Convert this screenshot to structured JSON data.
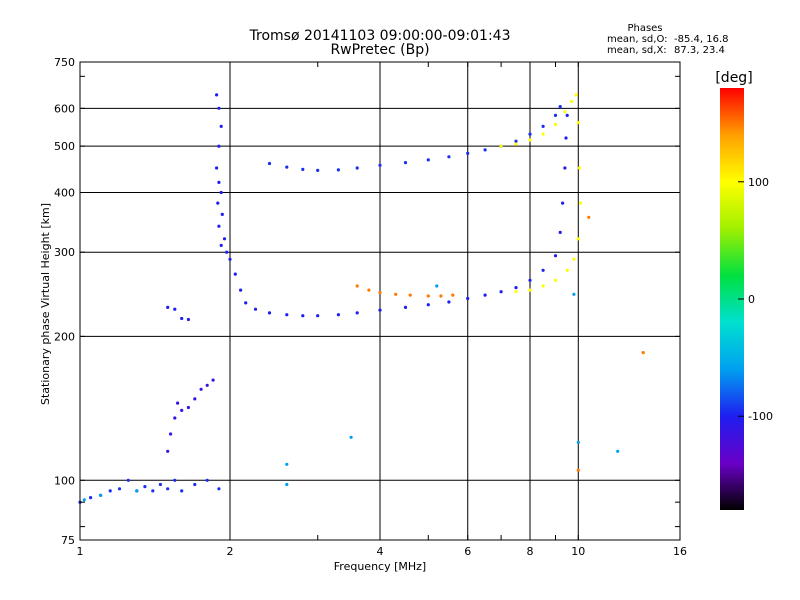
{
  "chart_data": {
    "type": "scatter",
    "title": "Tromsø 20141103 09:00:00-09:01:43",
    "subtitle": "RwPretec (Bp)",
    "xlabel": "Frequency [MHz]",
    "ylabel": "Stationary phase Virtual Height [km]",
    "x_scale": "log",
    "y_scale": "log",
    "xlim": [
      1,
      16
    ],
    "ylim": [
      75,
      750
    ],
    "x_ticks": [
      1,
      2,
      4,
      6,
      8,
      10,
      16
    ],
    "y_ticks": [
      75,
      100,
      200,
      300,
      400,
      500,
      600,
      750
    ],
    "grid": true,
    "phase_stats": {
      "title": "Phases",
      "o_label": "mean, sd,O:",
      "o_values": "-85.4, 16.8",
      "x_label": "mean, sd,X:",
      "x_values": "87.3, 23.4"
    },
    "colorbar": {
      "label": "[deg]",
      "range": [
        -180,
        180
      ],
      "ticks": [
        100,
        0,
        -100
      ],
      "colormap": [
        "#000000",
        "#6a00c8",
        "#1e1ef0",
        "#00a0f0",
        "#00e0d0",
        "#00e040",
        "#a0f000",
        "#ffff00",
        "#ffa000",
        "#ff0000"
      ]
    },
    "series": [
      {
        "color_phase": -95,
        "points": [
          [
            1.0,
            90
          ],
          [
            1.05,
            92
          ],
          [
            1.1,
            93
          ],
          [
            1.15,
            95
          ],
          [
            1.2,
            96
          ],
          [
            1.25,
            100
          ],
          [
            1.3,
            95
          ],
          [
            1.35,
            97
          ],
          [
            1.4,
            95
          ],
          [
            1.45,
            98
          ],
          [
            1.5,
            96
          ],
          [
            1.55,
            100
          ],
          [
            1.6,
            95
          ],
          [
            1.7,
            98
          ],
          [
            1.8,
            100
          ],
          [
            1.9,
            96
          ]
        ]
      },
      {
        "color_phase": -100,
        "points": [
          [
            1.5,
            230
          ],
          [
            1.55,
            228
          ],
          [
            1.6,
            218
          ],
          [
            1.65,
            217
          ]
        ]
      },
      {
        "color_phase": -110,
        "points": [
          [
            1.5,
            115
          ],
          [
            1.52,
            125
          ],
          [
            1.55,
            135
          ],
          [
            1.57,
            145
          ],
          [
            1.6,
            140
          ],
          [
            1.65,
            142
          ],
          [
            1.7,
            148
          ],
          [
            1.75,
            155
          ],
          [
            1.8,
            158
          ],
          [
            1.85,
            162
          ]
        ]
      },
      {
        "color_phase": -100,
        "points": [
          [
            1.88,
            640
          ],
          [
            1.9,
            600
          ],
          [
            1.92,
            550
          ],
          [
            1.9,
            500
          ],
          [
            1.88,
            450
          ],
          [
            1.9,
            420
          ],
          [
            1.92,
            400
          ],
          [
            1.89,
            380
          ],
          [
            1.93,
            360
          ],
          [
            1.9,
            340
          ],
          [
            1.95,
            320
          ],
          [
            1.92,
            310
          ],
          [
            1.97,
            300
          ],
          [
            2.0,
            290
          ],
          [
            2.05,
            270
          ],
          [
            2.1,
            250
          ],
          [
            2.15,
            235
          ],
          [
            2.25,
            228
          ],
          [
            2.4,
            224
          ],
          [
            2.6,
            222
          ],
          [
            2.8,
            221
          ],
          [
            3.0,
            221
          ],
          [
            3.3,
            222
          ],
          [
            3.6,
            224
          ],
          [
            4.0,
            227
          ],
          [
            4.5,
            230
          ],
          [
            5.0,
            233
          ],
          [
            5.5,
            236
          ],
          [
            6.0,
            240
          ],
          [
            6.5,
            244
          ],
          [
            7.0,
            248
          ],
          [
            7.5,
            253
          ],
          [
            8.0,
            262
          ],
          [
            8.5,
            275
          ],
          [
            9.0,
            295
          ],
          [
            9.2,
            330
          ],
          [
            9.3,
            380
          ],
          [
            9.4,
            450
          ],
          [
            9.45,
            520
          ],
          [
            9.5,
            580
          ]
        ]
      },
      {
        "color_phase": -95,
        "points": [
          [
            2.4,
            460
          ],
          [
            2.6,
            452
          ],
          [
            2.8,
            447
          ],
          [
            3.0,
            445
          ],
          [
            3.3,
            446
          ],
          [
            3.6,
            450
          ],
          [
            4.0,
            456
          ],
          [
            4.5,
            462
          ],
          [
            5.0,
            468
          ],
          [
            5.5,
            475
          ],
          [
            6.0,
            483
          ],
          [
            6.5,
            491
          ],
          [
            7.0,
            500
          ],
          [
            7.5,
            512
          ],
          [
            8.0,
            530
          ],
          [
            8.5,
            550
          ],
          [
            9.0,
            580
          ],
          [
            9.2,
            605
          ]
        ]
      },
      {
        "color_phase": 150,
        "points": [
          [
            3.6,
            255
          ],
          [
            3.8,
            250
          ],
          [
            4.0,
            247
          ],
          [
            4.3,
            245
          ],
          [
            4.6,
            244
          ],
          [
            5.0,
            243
          ],
          [
            5.3,
            243
          ],
          [
            5.6,
            244
          ]
        ]
      },
      {
        "color_phase": 100,
        "points": [
          [
            7.0,
            500
          ],
          [
            7.5,
            505
          ],
          [
            8.0,
            515
          ],
          [
            8.5,
            530
          ],
          [
            9.0,
            555
          ],
          [
            9.4,
            590
          ],
          [
            9.7,
            620
          ],
          [
            9.9,
            640
          ],
          [
            10.0,
            560
          ],
          [
            10.05,
            450
          ],
          [
            10.1,
            380
          ],
          [
            10.0,
            320
          ],
          [
            9.8,
            290
          ],
          [
            9.5,
            275
          ],
          [
            9.0,
            262
          ],
          [
            8.5,
            255
          ],
          [
            8.0,
            250
          ],
          [
            7.5,
            248
          ]
        ]
      },
      {
        "color_phase": -60,
        "points": [
          [
            1.02,
            91
          ],
          [
            1.1,
            93
          ],
          [
            1.3,
            95
          ],
          [
            2.6,
            108
          ],
          [
            2.6,
            98
          ],
          [
            3.5,
            123
          ],
          [
            5.2,
            255
          ],
          [
            9.8,
            245
          ],
          [
            10.0,
            120
          ],
          [
            12.0,
            115
          ]
        ]
      },
      {
        "color_phase": 150,
        "points": [
          [
            13.5,
            185
          ],
          [
            10.0,
            105
          ],
          [
            10.5,
            355
          ]
        ]
      }
    ]
  }
}
